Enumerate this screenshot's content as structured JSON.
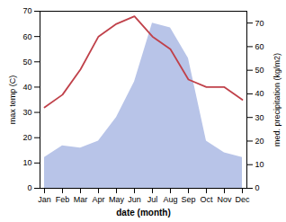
{
  "chart_data": {
    "type": "line",
    "categories": [
      "Jan",
      "Feb",
      "Mar",
      "Apr",
      "May",
      "Jun",
      "Jul",
      "Aug",
      "Sep",
      "Oct",
      "Nov",
      "Dec"
    ],
    "xlabel": "date (month)",
    "ylabel": "max temp (C)",
    "y2label": "med. precipitation (kg/m2)",
    "series": [
      {
        "type": "area",
        "axis": "y2",
        "color": "#b8c4e8",
        "values": [
          13,
          18,
          17,
          20,
          30,
          45,
          70,
          68,
          55,
          20,
          15,
          13
        ]
      },
      {
        "type": "line",
        "color": "#c0414a",
        "values": [
          32,
          37,
          47,
          60,
          65,
          68,
          60,
          55,
          43,
          40,
          40,
          35
        ]
      }
    ],
    "ylim": [
      0,
      70
    ],
    "yticks": [
      0,
      10,
      20,
      30,
      40,
      50,
      60,
      70
    ],
    "y2lim": [
      0,
      75
    ],
    "y2ticks": [
      0,
      10,
      20,
      30,
      40,
      50,
      60,
      70
    ]
  }
}
